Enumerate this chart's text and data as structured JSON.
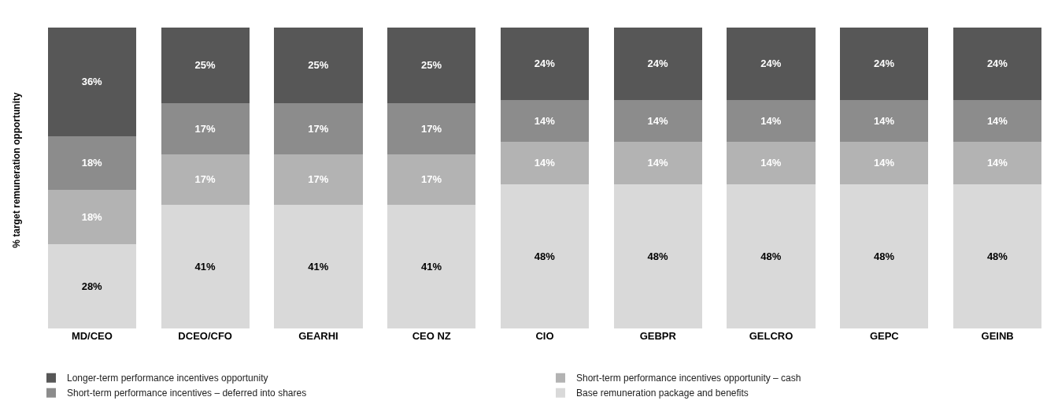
{
  "chart_data": {
    "type": "bar",
    "stacked": true,
    "ylabel": "% target remuneration opportunity",
    "categories": [
      "MD/CEO",
      "DCEO/CFO",
      "GEARHI",
      "CEO NZ",
      "CIO",
      "GEBPR",
      "GELCRO",
      "GEPC",
      "GEINB"
    ],
    "series": [
      {
        "name": "Base remuneration package and benefits",
        "color": "#d9d9d9",
        "values": [
          28,
          41,
          41,
          41,
          48,
          48,
          48,
          48,
          48
        ],
        "value_labels": [
          "28%",
          "41%",
          "41%",
          "41%",
          "48%",
          "48%",
          "48%",
          "48%",
          "48%"
        ]
      },
      {
        "name": "Short-term performance incentives opportunity – cash",
        "color": "#b3b3b3",
        "values": [
          18,
          17,
          17,
          17,
          14,
          14,
          14,
          14,
          14
        ],
        "value_labels": [
          "18%",
          "17%",
          "17%",
          "17%",
          "14%",
          "14%",
          "14%",
          "14%",
          "14%"
        ]
      },
      {
        "name": "Short-term performance incentives – deferred into shares",
        "color": "#8c8c8c",
        "values": [
          18,
          17,
          17,
          17,
          14,
          14,
          14,
          14,
          14
        ],
        "value_labels": [
          "18%",
          "17%",
          "17%",
          "17%",
          "14%",
          "14%",
          "14%",
          "14%",
          "14%"
        ]
      },
      {
        "name": "Longer-term performance incentives opportunity",
        "color": "#575757",
        "values": [
          36,
          25,
          25,
          25,
          24,
          24,
          24,
          24,
          24
        ],
        "value_labels": [
          "36%",
          "25%",
          "25%",
          "25%",
          "24%",
          "24%",
          "24%",
          "24%",
          "24%"
        ]
      }
    ],
    "legend": "bottom",
    "tick_labels": "x"
  }
}
